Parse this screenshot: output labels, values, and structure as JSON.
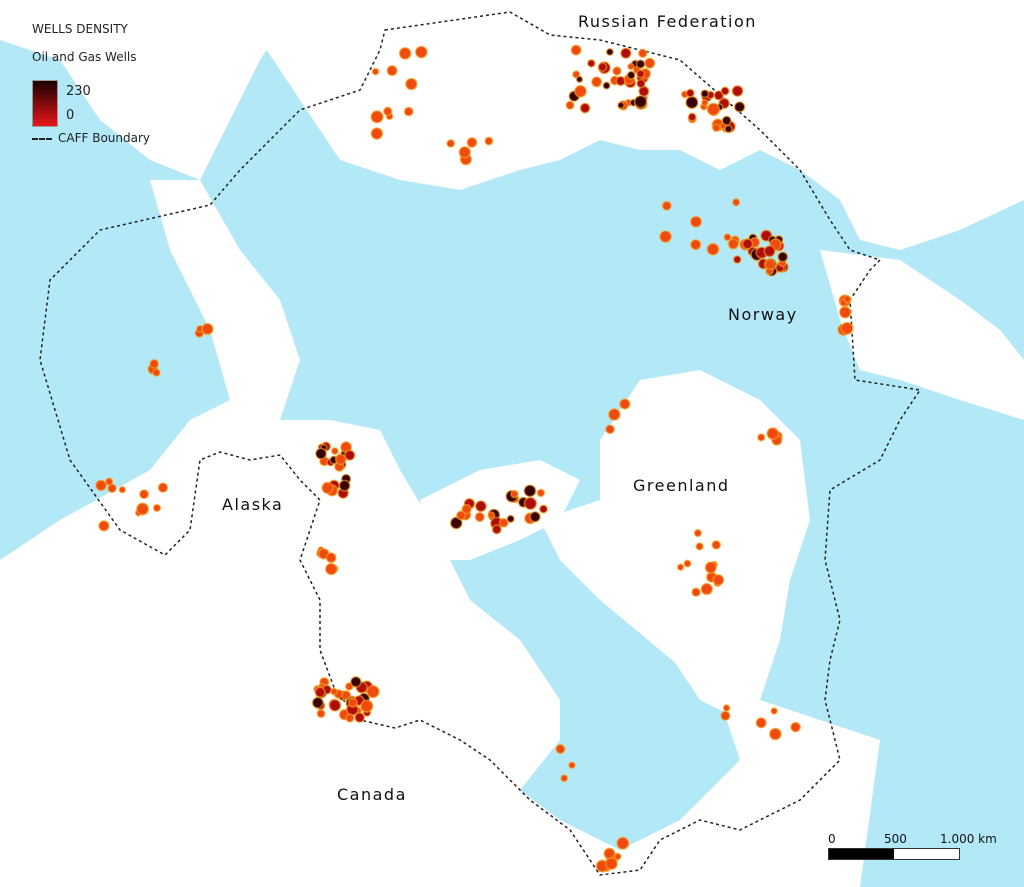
{
  "legend": {
    "title": "WELLS DENSITY",
    "layer": "Oil and Gas Wells",
    "max": "230",
    "min": "0",
    "boundary": "CAFF Boundary"
  },
  "labels": {
    "russia": "Russian Federation",
    "norway": "Norway",
    "greenland": "Greenland",
    "alaska": "Alaska",
    "canada": "Canada"
  },
  "scale": {
    "zero": "0",
    "mid": "500",
    "end": "1.000 km"
  },
  "colors": {
    "water": "#b3e8f7",
    "land": "#ffffff",
    "low": "#e8171b",
    "high": "#1a0000",
    "halo": "#f5a623"
  }
}
